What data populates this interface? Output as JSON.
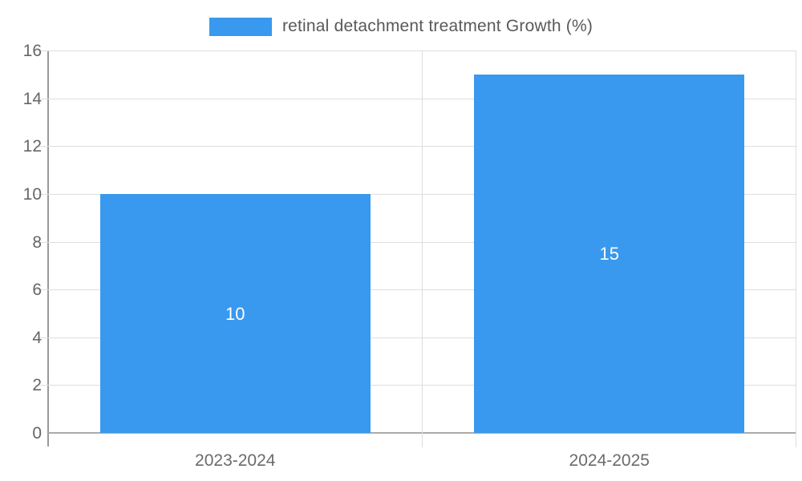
{
  "legend": {
    "label": "retinal detachment treatment Growth (%)",
    "swatch_color": "#3899EE",
    "swatch_icon": "legend-swatch"
  },
  "chart_data": {
    "type": "bar",
    "title": "",
    "categories": [
      "2023-2024",
      "2024-2025"
    ],
    "series": [
      {
        "name": "retinal detachment treatment Growth (%)",
        "values": [
          10,
          15
        ]
      }
    ],
    "value_labels": [
      "10",
      "15"
    ],
    "ylabel": "",
    "xlabel": "",
    "ylim": [
      0,
      16
    ],
    "yticks": [
      0,
      2,
      4,
      6,
      8,
      10,
      12,
      14,
      16
    ],
    "grid": true,
    "legend_position": "top",
    "bar_color": "#3899EE",
    "gridline_color": "#dedede",
    "axis_line_color": "#999999",
    "baseline_color": "#ababab",
    "axis_label_color": "#666666",
    "bar_label_color": "#ffffff"
  }
}
